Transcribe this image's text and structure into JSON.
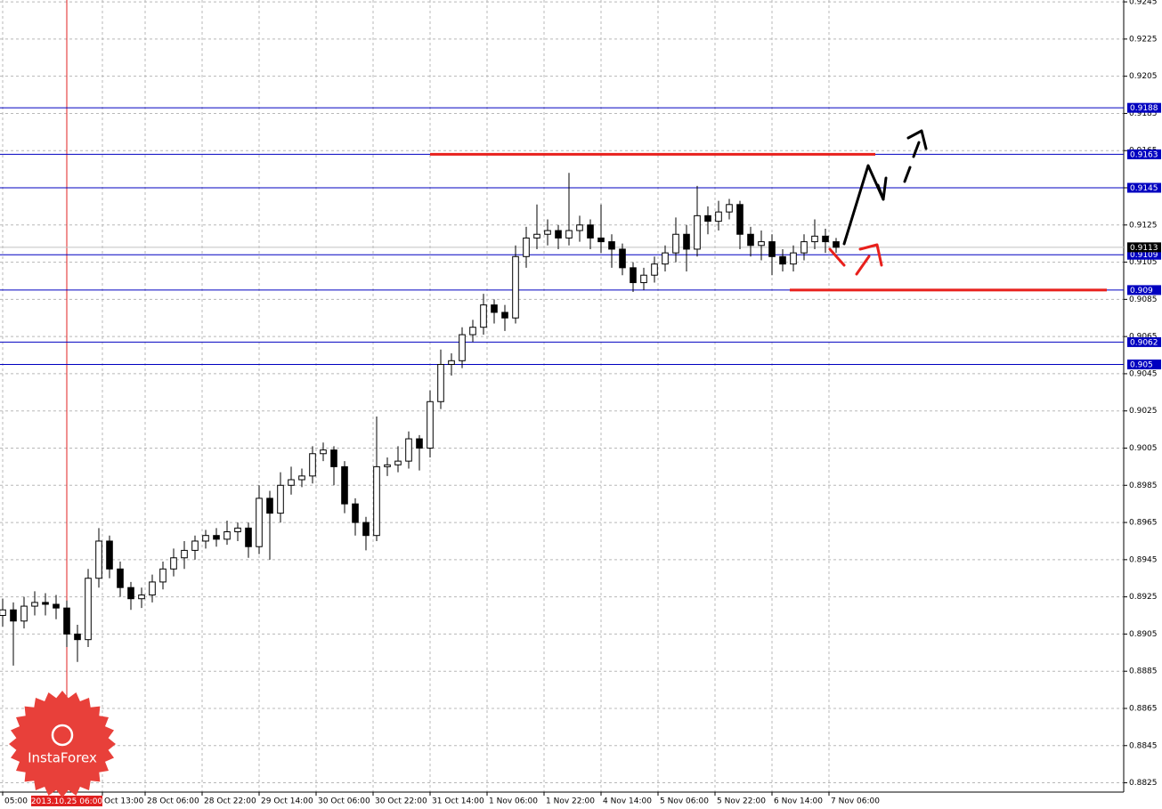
{
  "chart_data": {
    "type": "candlestick",
    "x": [
      0,
      3,
      6,
      9,
      12,
      15,
      18,
      21,
      24,
      27,
      30,
      33,
      36,
      39,
      42,
      45,
      48,
      51,
      54,
      57,
      60,
      63,
      66,
      69,
      72,
      75,
      78,
      81,
      84,
      87,
      90,
      93,
      96,
      99,
      102,
      105,
      108,
      111,
      114,
      117,
      120,
      123,
      126,
      129,
      132,
      135,
      138,
      141,
      144,
      147,
      150,
      153,
      156,
      159,
      162,
      165,
      168,
      171,
      174,
      177,
      180,
      183,
      186,
      189,
      192,
      195,
      198,
      201,
      204,
      207,
      210,
      213,
      216,
      219,
      222,
      225,
      228,
      231,
      234
    ],
    "open": [
      0.8915,
      0.8918,
      0.8912,
      0.892,
      0.8922,
      0.8921,
      0.8919,
      0.8905,
      0.8902,
      0.8935,
      0.8955,
      0.894,
      0.893,
      0.8924,
      0.8926,
      0.8933,
      0.894,
      0.8946,
      0.895,
      0.8955,
      0.8958,
      0.8956,
      0.896,
      0.8962,
      0.8952,
      0.8978,
      0.897,
      0.8985,
      0.8988,
      0.899,
      0.9002,
      0.9004,
      0.8995,
      0.8975,
      0.8965,
      0.8958,
      0.8995,
      0.8996,
      0.8998,
      0.901,
      0.9005,
      0.903,
      0.905,
      0.9052,
      0.9066,
      0.907,
      0.9082,
      0.9078,
      0.9075,
      0.9108,
      0.9118,
      0.912,
      0.9122,
      0.9118,
      0.9122,
      0.9125,
      0.9118,
      0.9116,
      0.9112,
      0.9102,
      0.9094,
      0.9098,
      0.9104,
      0.911,
      0.912,
      0.9112,
      0.913,
      0.9127,
      0.9132,
      0.9136,
      0.912,
      0.9114,
      0.9116,
      0.9108,
      0.9104,
      0.911,
      0.9116,
      0.9119,
      0.9116
    ],
    "high": [
      0.8924,
      0.8922,
      0.8925,
      0.8928,
      0.8927,
      0.8926,
      0.8923,
      0.891,
      0.894,
      0.8962,
      0.8958,
      0.8944,
      0.8933,
      0.893,
      0.8937,
      0.8944,
      0.8951,
      0.8955,
      0.8958,
      0.8961,
      0.8962,
      0.8966,
      0.8965,
      0.8965,
      0.8985,
      0.8982,
      0.8992,
      0.8995,
      0.8994,
      0.9006,
      0.9008,
      0.9006,
      0.8998,
      0.8978,
      0.8968,
      0.9022,
      0.9,
      0.9006,
      0.9014,
      0.9012,
      0.9036,
      0.9058,
      0.9056,
      0.907,
      0.9074,
      0.9088,
      0.9085,
      0.9082,
      0.9114,
      0.9124,
      0.9136,
      0.9128,
      0.9125,
      0.9153,
      0.913,
      0.9128,
      0.9136,
      0.912,
      0.9115,
      0.9105,
      0.9102,
      0.9108,
      0.9114,
      0.9129,
      0.9125,
      0.9146,
      0.9135,
      0.9138,
      0.9139,
      0.9138,
      0.9124,
      0.9122,
      0.912,
      0.9112,
      0.9114,
      0.912,
      0.9128,
      0.9123,
      0.9118
    ],
    "low": [
      0.8909,
      0.8888,
      0.8908,
      0.8915,
      0.8915,
      0.8913,
      0.8898,
      0.889,
      0.8898,
      0.893,
      0.8935,
      0.8925,
      0.8918,
      0.8919,
      0.8922,
      0.8929,
      0.8936,
      0.894,
      0.8945,
      0.8951,
      0.8952,
      0.8953,
      0.8955,
      0.8946,
      0.8948,
      0.8945,
      0.8965,
      0.898,
      0.8984,
      0.8986,
      0.8998,
      0.8985,
      0.897,
      0.8958,
      0.895,
      0.8955,
      0.899,
      0.8992,
      0.8994,
      0.8993,
      0.9,
      0.9026,
      0.9044,
      0.9048,
      0.9062,
      0.9066,
      0.9072,
      0.9068,
      0.9072,
      0.9102,
      0.9112,
      0.9114,
      0.9112,
      0.9114,
      0.9116,
      0.9112,
      0.911,
      0.9102,
      0.9098,
      0.9089,
      0.909,
      0.9094,
      0.91,
      0.9105,
      0.91,
      0.9108,
      0.912,
      0.9122,
      0.9128,
      0.9112,
      0.9108,
      0.9106,
      0.9098,
      0.91,
      0.91,
      0.9106,
      0.9112,
      0.911,
      0.911
    ],
    "close": [
      0.8918,
      0.8912,
      0.892,
      0.8922,
      0.8921,
      0.8919,
      0.8905,
      0.8902,
      0.8935,
      0.8955,
      0.894,
      0.893,
      0.8924,
      0.8926,
      0.8933,
      0.894,
      0.8946,
      0.895,
      0.8955,
      0.8958,
      0.8956,
      0.896,
      0.8962,
      0.8952,
      0.8978,
      0.897,
      0.8985,
      0.8988,
      0.899,
      0.9002,
      0.9004,
      0.8995,
      0.8975,
      0.8965,
      0.8958,
      0.8995,
      0.8996,
      0.8998,
      0.901,
      0.9005,
      0.903,
      0.905,
      0.9052,
      0.9066,
      0.907,
      0.9082,
      0.9078,
      0.9075,
      0.9108,
      0.9118,
      0.912,
      0.9122,
      0.9118,
      0.9122,
      0.9125,
      0.9118,
      0.9116,
      0.9112,
      0.9102,
      0.9094,
      0.9098,
      0.9104,
      0.911,
      0.912,
      0.9112,
      0.913,
      0.9127,
      0.9132,
      0.9136,
      0.912,
      0.9114,
      0.9116,
      0.9108,
      0.9104,
      0.911,
      0.9116,
      0.9119,
      0.9116,
      0.9113
    ],
    "up_color": "#ffffff",
    "down_color": "#000000",
    "xlim": [
      -0.75,
      314.75
    ],
    "ylim": [
      0.882,
      0.9246
    ],
    "xticks": [
      {
        "value": 0,
        "label": "05:00"
      },
      {
        "value": 28,
        "label": "Oct 13:00"
      },
      {
        "value": 40,
        "label": "28 Oct 06:00"
      },
      {
        "value": 56,
        "label": "28 Oct 22:00"
      },
      {
        "value": 72,
        "label": "29 Oct 14:00"
      },
      {
        "value": 88,
        "label": "30 Oct 06:00"
      },
      {
        "value": 104,
        "label": "30 Oct 22:00"
      },
      {
        "value": 120,
        "label": "31 Oct 14:00"
      },
      {
        "value": 136,
        "label": "1 Nov 06:00"
      },
      {
        "value": 152,
        "label": "1 Nov 22:00"
      },
      {
        "value": 168,
        "label": "4 Nov 14:00"
      },
      {
        "value": 184,
        "label": "5 Nov 06:00"
      },
      {
        "value": 200,
        "label": "5 Nov 22:00"
      },
      {
        "value": 216,
        "label": "6 Nov 14:00"
      },
      {
        "value": 232,
        "label": "7 Nov 06:00"
      }
    ],
    "yticks": [
      0.9245,
      0.9225,
      0.9205,
      0.9185,
      0.9165,
      0.9145,
      0.9125,
      0.9105,
      0.9085,
      0.9065,
      0.9045,
      0.9025,
      0.9005,
      0.8985,
      0.8965,
      0.8945,
      0.8925,
      0.8905,
      0.8885,
      0.8865,
      0.8845,
      0.8825
    ],
    "grid": true,
    "levels": [
      {
        "value": 0.9188,
        "color": "#0000c0"
      },
      {
        "value": 0.9163,
        "color": "#0000c0"
      },
      {
        "value": 0.9145,
        "color": "#0000c0"
      },
      {
        "value": 0.9109,
        "color": "#0000c0"
      },
      {
        "value": 0.909,
        "color": "#0000c0"
      },
      {
        "value": 0.9062,
        "color": "#0000c0"
      },
      {
        "value": 0.905,
        "color": "#0000c0"
      }
    ],
    "current_price": {
      "value": 0.9113,
      "color": "#000000"
    },
    "red_lines": [
      {
        "value": 0.9163,
        "x": [
          120,
          245
        ],
        "color": "#e8201c"
      },
      {
        "value": 0.909,
        "x": [
          221,
          310
        ],
        "color": "#e8201c"
      }
    ],
    "cursor": {
      "x": 18,
      "label": "2013.10.25 06:00",
      "color": "#e02020"
    },
    "logo": "InstaForex"
  }
}
